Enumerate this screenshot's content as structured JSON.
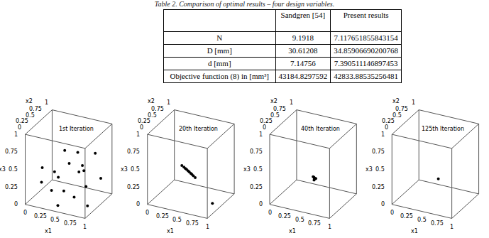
{
  "caption": "Table 2. Comparison of optimal results – four design variables.",
  "table": {
    "header": [
      "",
      "Sandgren [54]",
      "Present results"
    ],
    "rows": [
      [
        "N",
        "9.1918",
        "7.117651855843154"
      ],
      [
        "D [mm]",
        "30.61208",
        "34.85906690200768"
      ],
      [
        "d [mm]",
        "7.14756",
        "7.390511146897453"
      ],
      [
        "Objective function (8) in [mm³]",
        "43184.8297592",
        "42833.88535256481"
      ]
    ]
  },
  "chart_data": [
    {
      "type": "scatter3d",
      "title": "1st Iteration",
      "axis_labels": {
        "x": "x1",
        "y": "x2",
        "z": "x3"
      },
      "xlim": [
        0,
        1
      ],
      "ylim": [
        0,
        1
      ],
      "zlim": [
        0,
        1
      ],
      "xticks": [
        0,
        0.25,
        0.5,
        0.75,
        1
      ],
      "yticks": [
        0,
        0.25,
        0.5,
        0.75,
        1
      ],
      "zticks": [
        0,
        0.25,
        0.5,
        0.75,
        1
      ],
      "x": [
        0.15,
        0.22,
        0.35,
        0.3,
        0.42,
        0.55,
        0.6,
        0.7,
        0.8,
        0.88,
        0.5,
        0.65,
        0.75,
        0.9,
        0.25,
        0.45,
        0.95,
        0.35
      ],
      "y": [
        0.3,
        0.6,
        0.2,
        0.8,
        0.5,
        0.9,
        0.3,
        0.7,
        0.4,
        0.85,
        0.1,
        0.55,
        0.15,
        0.6,
        0.05,
        0.95,
        0.2,
        0.45
      ],
      "z": [
        0.45,
        0.3,
        0.2,
        0.55,
        0.1,
        0.35,
        0.6,
        0.15,
        0.5,
        0.25,
        0.05,
        0.4,
        0.2,
        0.7,
        0.35,
        0.5,
        0.1,
        0.3
      ],
      "color": "#000000"
    },
    {
      "type": "scatter3d",
      "title": "20th Iteration",
      "axis_labels": {
        "x": "x1",
        "y": "x2",
        "z": "x3"
      },
      "xlim": [
        0,
        1
      ],
      "ylim": [
        0,
        1
      ],
      "zlim": [
        0,
        1
      ],
      "xticks": [
        0,
        0.25,
        0.5,
        0.75,
        1
      ],
      "yticks": [
        0,
        0.25,
        0.5,
        0.75,
        1
      ],
      "zticks": [
        0,
        0.25,
        0.5,
        0.75,
        1
      ],
      "x": [
        0.35,
        0.38,
        0.4,
        0.42,
        0.44,
        0.46,
        0.48,
        0.5,
        0.52,
        0.55,
        0.95
      ],
      "y": [
        0.5,
        0.51,
        0.52,
        0.52,
        0.53,
        0.53,
        0.54,
        0.54,
        0.55,
        0.55,
        0.3
      ],
      "z": [
        0.45,
        0.43,
        0.41,
        0.4,
        0.38,
        0.37,
        0.35,
        0.34,
        0.32,
        0.3,
        0.1
      ],
      "color": "#000000"
    },
    {
      "type": "scatter3d",
      "title": "40th Iteration",
      "axis_labels": {
        "x": "x1",
        "y": "x2",
        "z": "x3"
      },
      "xlim": [
        0,
        1
      ],
      "ylim": [
        0,
        1
      ],
      "zlim": [
        0,
        1
      ],
      "xticks": [
        0,
        0.25,
        0.5,
        0.75,
        1
      ],
      "yticks": [
        0,
        0.25,
        0.5,
        0.75,
        1
      ],
      "zticks": [
        0,
        0.25,
        0.5,
        0.75,
        1
      ],
      "x": [
        0.5,
        0.51,
        0.52,
        0.53,
        0.54,
        0.52
      ],
      "y": [
        0.5,
        0.51,
        0.5,
        0.52,
        0.51,
        0.49
      ],
      "z": [
        0.32,
        0.31,
        0.3,
        0.29,
        0.3,
        0.28
      ],
      "color": "#000000"
    },
    {
      "type": "scatter3d",
      "title": "125th Iteration",
      "axis_labels": {
        "x": "x1",
        "y": "x2",
        "z": "x3"
      },
      "xlim": [
        0,
        1
      ],
      "ylim": [
        0,
        1
      ],
      "zlim": [
        0,
        1
      ],
      "xticks": [
        0,
        0.25,
        0.5,
        0.75,
        1
      ],
      "yticks": [
        0,
        0.25,
        0.5,
        0.75,
        1
      ],
      "zticks": [
        0,
        0.25,
        0.5,
        0.75,
        1
      ],
      "x": [
        0.55
      ],
      "y": [
        0.5
      ],
      "z": [
        0.3
      ],
      "color": "#000000"
    }
  ]
}
